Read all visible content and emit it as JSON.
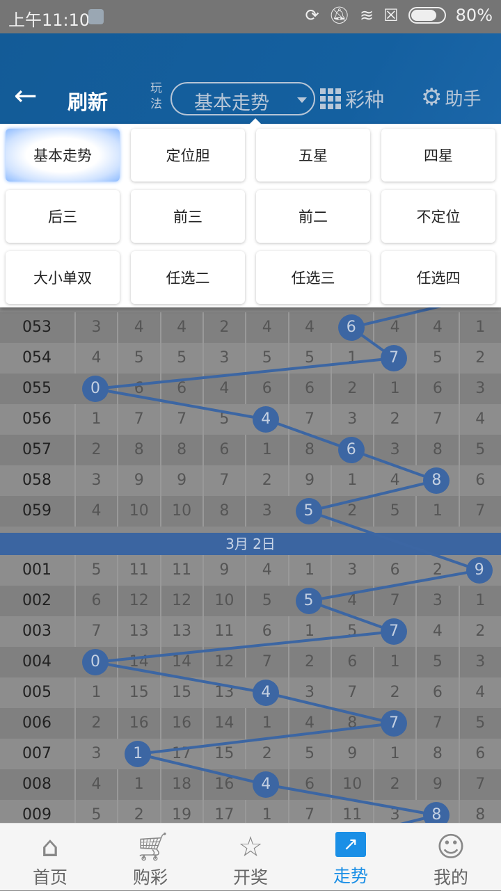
{
  "status_bar": {
    "time": "上午11:10",
    "battery": "80%"
  },
  "header": {
    "back_icon": "arrow-left-icon",
    "refresh": "刷新",
    "play_label": "玩法",
    "selected_play": "基本走势",
    "lottery_type": "彩种",
    "helper": "助手"
  },
  "play_menu": {
    "selected": "基本走势",
    "items": [
      "基本走势",
      "定位胆",
      "五星",
      "四星",
      "后三",
      "前三",
      "前二",
      "不定位",
      "大小单双",
      "任选二",
      "任选三",
      "任选四"
    ]
  },
  "trend": {
    "colors": {
      "ball": "#3c66a3",
      "line": "#3c66a3",
      "date_bar": "#3b65a1"
    },
    "groups": [
      {
        "date": "",
        "rows": [
          {
            "issue": "053",
            "win": 6,
            "cells": [
              "3",
              "4",
              "4",
              "2",
              "4",
              "4",
              "6",
              "4",
              "4",
              "1"
            ]
          },
          {
            "issue": "054",
            "win": 7,
            "cells": [
              "4",
              "5",
              "5",
              "3",
              "5",
              "5",
              "1",
              "7",
              "5",
              "2"
            ]
          },
          {
            "issue": "055",
            "win": 0,
            "cells": [
              "0",
              "6",
              "6",
              "4",
              "6",
              "6",
              "2",
              "1",
              "6",
              "3"
            ]
          },
          {
            "issue": "056",
            "win": 4,
            "cells": [
              "1",
              "7",
              "7",
              "5",
              "4",
              "7",
              "3",
              "2",
              "7",
              "4"
            ]
          },
          {
            "issue": "057",
            "win": 6,
            "cells": [
              "2",
              "8",
              "8",
              "6",
              "1",
              "8",
              "6",
              "3",
              "8",
              "5"
            ]
          },
          {
            "issue": "058",
            "win": 8,
            "cells": [
              "3",
              "9",
              "9",
              "7",
              "2",
              "9",
              "1",
              "4",
              "8",
              "6"
            ]
          },
          {
            "issue": "059",
            "win": 5,
            "cells": [
              "4",
              "10",
              "10",
              "8",
              "3",
              "5",
              "2",
              "5",
              "1",
              "7"
            ]
          }
        ]
      },
      {
        "date": "3月 2日",
        "rows": [
          {
            "issue": "001",
            "win": 9,
            "cells": [
              "5",
              "11",
              "11",
              "9",
              "4",
              "1",
              "3",
              "6",
              "2",
              "9"
            ]
          },
          {
            "issue": "002",
            "win": 5,
            "cells": [
              "6",
              "12",
              "12",
              "10",
              "5",
              "5",
              "4",
              "7",
              "3",
              "1"
            ]
          },
          {
            "issue": "003",
            "win": 7,
            "cells": [
              "7",
              "13",
              "13",
              "11",
              "6",
              "1",
              "5",
              "7",
              "4",
              "2"
            ]
          },
          {
            "issue": "004",
            "win": 0,
            "cells": [
              "0",
              "14",
              "14",
              "12",
              "7",
              "2",
              "6",
              "1",
              "5",
              "3"
            ]
          },
          {
            "issue": "005",
            "win": 4,
            "cells": [
              "1",
              "15",
              "15",
              "13",
              "4",
              "3",
              "7",
              "2",
              "6",
              "4"
            ]
          },
          {
            "issue": "006",
            "win": 7,
            "cells": [
              "2",
              "16",
              "16",
              "14",
              "1",
              "4",
              "8",
              "7",
              "7",
              "5"
            ]
          },
          {
            "issue": "007",
            "win": 1,
            "cells": [
              "3",
              "1",
              "17",
              "15",
              "2",
              "5",
              "9",
              "1",
              "8",
              "6"
            ]
          },
          {
            "issue": "008",
            "win": 4,
            "cells": [
              "4",
              "1",
              "18",
              "16",
              "4",
              "6",
              "10",
              "2",
              "9",
              "7"
            ]
          },
          {
            "issue": "009",
            "win": 8,
            "cells": [
              "5",
              "2",
              "19",
              "17",
              "1",
              "7",
              "11",
              "3",
              "8",
              "8"
            ]
          }
        ]
      }
    ]
  },
  "bottom_nav": {
    "active": "走势",
    "items": [
      {
        "label": "首页",
        "icon": "home-ticket-icon"
      },
      {
        "label": "购彩",
        "icon": "cart-icon"
      },
      {
        "label": "开奖",
        "icon": "award-badge-icon"
      },
      {
        "label": "走势",
        "icon": "trend-chart-icon"
      },
      {
        "label": "我的",
        "icon": "user-profile-icon"
      }
    ]
  }
}
